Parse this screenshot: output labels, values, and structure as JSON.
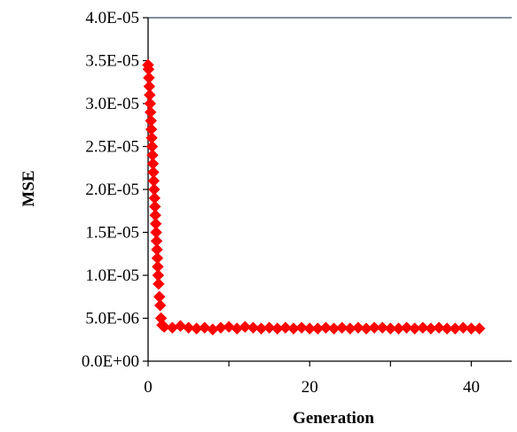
{
  "chart_data": {
    "type": "scatter",
    "title": "",
    "xlabel": "Generation",
    "ylabel": "MSE",
    "xlim": [
      0,
      45
    ],
    "ylim": [
      0,
      4e-05
    ],
    "x_ticks": [
      0,
      20,
      40
    ],
    "x_tick_labels": [
      "0",
      "20",
      "40"
    ],
    "y_ticks": [
      0,
      5e-06,
      1e-05,
      1.5e-05,
      2e-05,
      2.5e-05,
      3e-05,
      3.5e-05,
      4e-05
    ],
    "y_tick_labels": [
      "0.0E+00",
      "5.0E-06",
      "1.0E-05",
      "1.5E-05",
      "2.0E-05",
      "2.5E-05",
      "3.0E-05",
      "3.5E-05",
      "4.0E-05"
    ],
    "grid": false,
    "marker": "diamond",
    "marker_color": "#ff0000",
    "frame_color": "#3a4a64",
    "series": [
      {
        "x": [
          0.0,
          0.05,
          0.1,
          0.15,
          0.2,
          0.25,
          0.3,
          0.35,
          0.4,
          0.45,
          0.5,
          0.55,
          0.6,
          0.65,
          0.7,
          0.75,
          0.8,
          0.85,
          0.9,
          0.95,
          1.0,
          1.05,
          1.1,
          1.15,
          1.2,
          1.25,
          1.3,
          1.4,
          1.5,
          1.6,
          1.75,
          2,
          3,
          4,
          5,
          6,
          7,
          8,
          9,
          10,
          11,
          12,
          13,
          14,
          15,
          16,
          17,
          18,
          19,
          20,
          21,
          22,
          23,
          24,
          25,
          26,
          27,
          28,
          29,
          30,
          31,
          32,
          33,
          34,
          35,
          36,
          37,
          38,
          39,
          40,
          41
        ],
        "y": [
          3.45e-05,
          3.4e-05,
          3.3e-05,
          3.2e-05,
          3.1e-05,
          3e-05,
          2.9e-05,
          2.8e-05,
          2.7e-05,
          2.6e-05,
          2.5e-05,
          2.4e-05,
          2.3e-05,
          2.2e-05,
          2.1e-05,
          2e-05,
          1.9e-05,
          1.8e-05,
          1.7e-05,
          1.6e-05,
          1.5e-05,
          1.4e-05,
          1.3e-05,
          1.2e-05,
          1.1e-05,
          1e-05,
          9e-06,
          7.5e-06,
          6.5e-06,
          5e-06,
          4.2e-06,
          4e-06,
          3.9e-06,
          4.1e-06,
          3.9e-06,
          3.8e-06,
          3.9e-06,
          3.7e-06,
          3.9e-06,
          4e-06,
          3.8e-06,
          4e-06,
          3.9e-06,
          3.8e-06,
          3.9e-06,
          3.8e-06,
          3.9e-06,
          3.8e-06,
          3.9e-06,
          3.8e-06,
          3.8e-06,
          3.9e-06,
          3.8e-06,
          3.9e-06,
          3.8e-06,
          3.9e-06,
          3.8e-06,
          3.9e-06,
          3.9e-06,
          3.8e-06,
          3.8e-06,
          3.9e-06,
          3.8e-06,
          3.9e-06,
          3.8e-06,
          3.9e-06,
          3.8e-06,
          3.8e-06,
          3.9e-06,
          3.8e-06,
          3.8e-06
        ]
      }
    ]
  }
}
